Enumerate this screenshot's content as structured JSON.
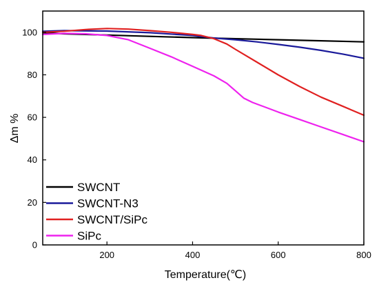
{
  "chart_data": {
    "type": "line",
    "title": "",
    "xlabel": "Temperature(℃)",
    "ylabel": "Δm %",
    "xlim": [
      50,
      800
    ],
    "ylim": [
      0,
      110
    ],
    "xticks": [
      200,
      400,
      600,
      800
    ],
    "yticks": [
      0,
      20,
      40,
      60,
      80,
      100
    ],
    "grid": false,
    "legend": "bottom-left",
    "series": [
      {
        "name": "SWCNT",
        "color": "#000000",
        "x": [
          50,
          100,
          200,
          300,
          400,
          500,
          600,
          700,
          800
        ],
        "y": [
          99.8,
          99.3,
          98.7,
          98.1,
          97.5,
          97.0,
          96.5,
          96.0,
          95.5
        ]
      },
      {
        "name": "SWCNT-N3",
        "color": "#1a1a9a",
        "x": [
          50,
          100,
          200,
          300,
          400,
          450,
          500,
          550,
          600,
          650,
          700,
          750,
          800
        ],
        "y": [
          100.5,
          100.8,
          100.6,
          99.8,
          98.5,
          97.3,
          96.5,
          95.5,
          94.3,
          93.0,
          91.5,
          89.8,
          87.8
        ]
      },
      {
        "name": "SWCNT/SiPc",
        "color": "#e02020",
        "x": [
          50,
          100,
          150,
          200,
          250,
          300,
          350,
          400,
          420,
          450,
          480,
          500,
          550,
          600,
          650,
          700,
          750,
          800
        ],
        "y": [
          100.0,
          100.5,
          101.3,
          101.8,
          101.5,
          100.8,
          100.0,
          99.0,
          98.5,
          97.0,
          94.5,
          92.0,
          86.0,
          80.0,
          74.5,
          69.5,
          65.3,
          61.0
        ]
      },
      {
        "name": "SiPc",
        "color": "#ee22ee",
        "x": [
          50,
          100,
          150,
          200,
          250,
          300,
          350,
          400,
          450,
          480,
          500,
          520,
          540,
          560,
          600,
          650,
          700,
          750,
          800
        ],
        "y": [
          99.0,
          99.5,
          99.3,
          98.5,
          96.5,
          92.5,
          88.5,
          84.0,
          79.5,
          76.0,
          72.5,
          69.0,
          67.0,
          65.5,
          62.5,
          59.0,
          55.5,
          52.0,
          48.5
        ]
      }
    ]
  }
}
